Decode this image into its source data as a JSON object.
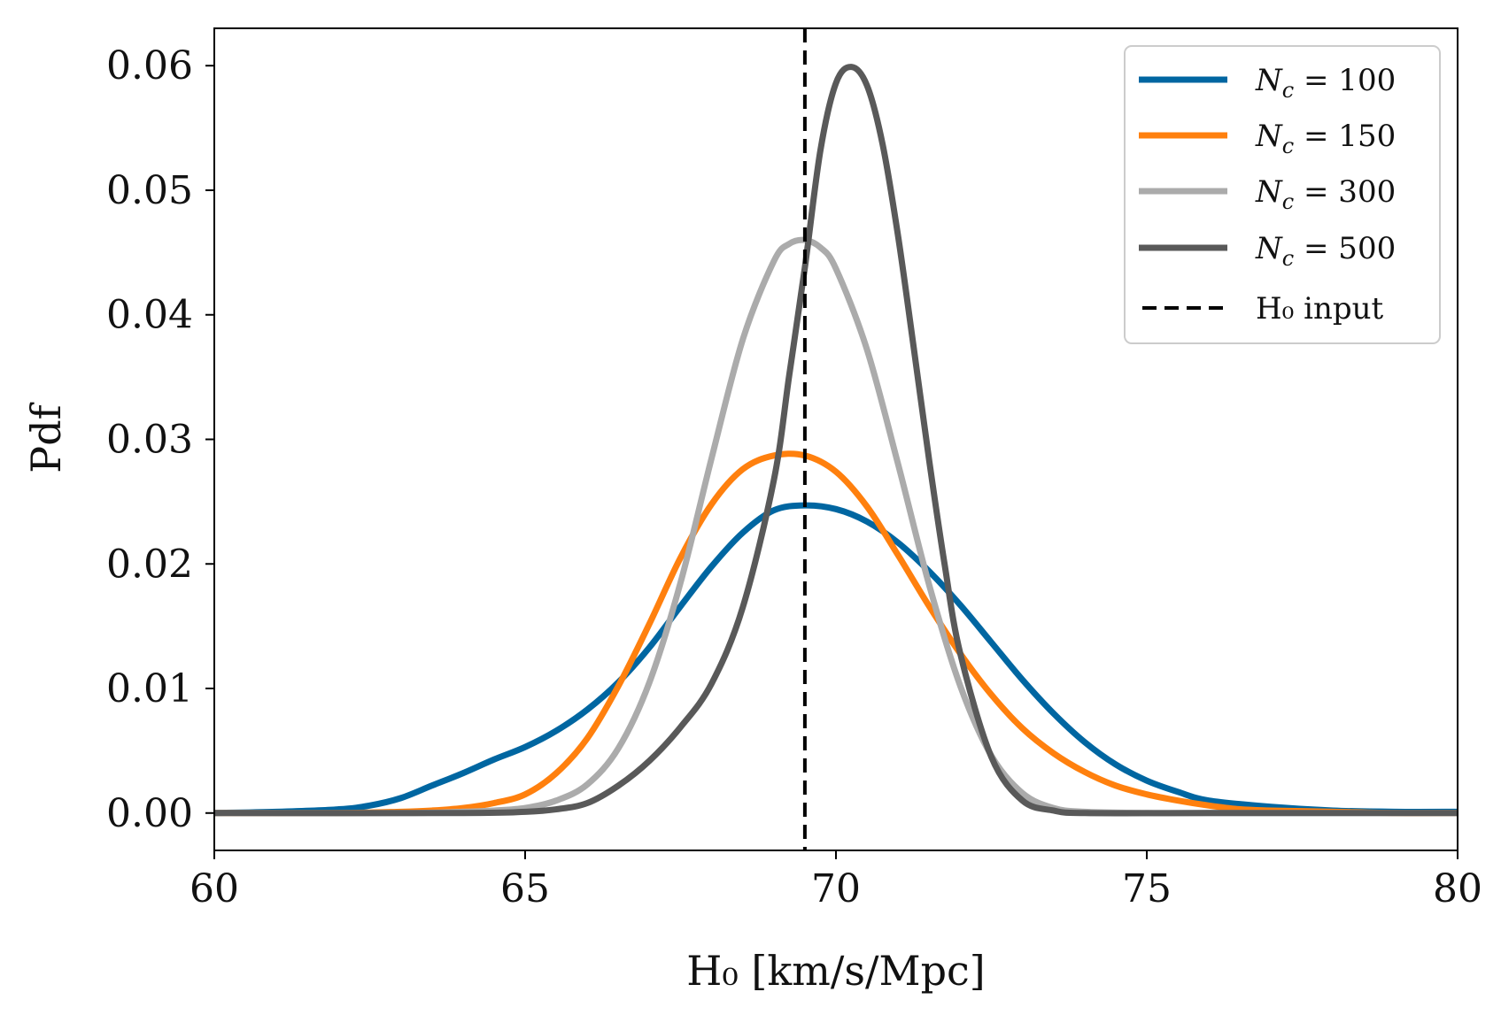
{
  "chart_data": {
    "type": "line",
    "title": "",
    "xlabel": "H₀ [km/s/Mpc]",
    "ylabel": "Pdf",
    "xlim": [
      60,
      80
    ],
    "ylim": [
      -0.003,
      0.063
    ],
    "xticks": [
      60,
      65,
      70,
      75,
      80
    ],
    "xtick_labels": [
      "60",
      "65",
      "70",
      "75",
      "80"
    ],
    "yticks": [
      0.0,
      0.01,
      0.02,
      0.03,
      0.04,
      0.05,
      0.06
    ],
    "ytick_labels": [
      "0.00",
      "0.01",
      "0.02",
      "0.03",
      "0.04",
      "0.05",
      "0.06"
    ],
    "grid": false,
    "legend_position": "top-right",
    "vline": {
      "x": 69.5,
      "label": "H₀ input",
      "color": "#000000",
      "style": "dashed"
    },
    "series": [
      {
        "name": "N_c = 100",
        "legend_var": "N",
        "legend_sub": "c",
        "legend_rest": " = 100",
        "color": "#0066a1",
        "x": [
          60,
          61,
          62,
          62.5,
          63,
          63.5,
          64,
          64.5,
          65,
          65.5,
          66,
          66.5,
          67,
          67.5,
          68,
          68.5,
          69,
          69.5,
          70,
          70.5,
          71,
          71.5,
          72,
          72.5,
          73,
          73.5,
          74,
          74.5,
          75,
          75.5,
          76,
          77,
          78,
          79,
          80
        ],
        "values": [
          0.0,
          0.0001,
          0.0003,
          0.0006,
          0.0012,
          0.0022,
          0.0032,
          0.0043,
          0.0053,
          0.0066,
          0.0083,
          0.0105,
          0.0133,
          0.0166,
          0.0198,
          0.0225,
          0.0243,
          0.0247,
          0.0244,
          0.0234,
          0.0217,
          0.0194,
          0.0167,
          0.0137,
          0.0107,
          0.008,
          0.0057,
          0.0039,
          0.0026,
          0.0017,
          0.001,
          0.0005,
          0.0002,
          0.0001,
          0.0001
        ]
      },
      {
        "name": "N_c = 150",
        "legend_var": "N",
        "legend_sub": "c",
        "legend_rest": " = 150",
        "color": "#ff800e",
        "x": [
          60,
          62,
          63,
          63.5,
          64,
          64.5,
          65,
          65.5,
          66,
          66.5,
          67,
          67.5,
          68,
          68.5,
          69,
          69.5,
          70,
          70.5,
          71,
          71.5,
          72,
          72.5,
          73,
          73.5,
          74,
          74.5,
          75,
          75.5,
          76,
          76.5,
          77,
          78,
          79,
          80
        ],
        "values": [
          0.0,
          0.0,
          0.0001,
          0.0002,
          0.0004,
          0.0008,
          0.0015,
          0.0032,
          0.006,
          0.0102,
          0.0152,
          0.0205,
          0.0248,
          0.0276,
          0.0287,
          0.0287,
          0.0274,
          0.0246,
          0.0207,
          0.0166,
          0.0128,
          0.0095,
          0.0068,
          0.0048,
          0.0033,
          0.0022,
          0.0015,
          0.001,
          0.0006,
          0.0003,
          0.0002,
          0.0001,
          0.0,
          0.0
        ]
      },
      {
        "name": "N_c = 300",
        "legend_var": "N",
        "legend_sub": "c",
        "legend_rest": " = 300",
        "color": "#ababab",
        "x": [
          60,
          63,
          64,
          64.5,
          65,
          65.5,
          66,
          66.5,
          67,
          67.5,
          68,
          68.5,
          69,
          69.25,
          69.5,
          69.75,
          70,
          70.5,
          71,
          71.5,
          72,
          72.5,
          73,
          73.5,
          74,
          75,
          76,
          80
        ],
        "values": [
          0.0,
          0.0,
          0.0001,
          0.0002,
          0.0004,
          0.001,
          0.0023,
          0.0052,
          0.0105,
          0.0185,
          0.0285,
          0.038,
          0.0443,
          0.0457,
          0.046,
          0.0454,
          0.0437,
          0.0372,
          0.028,
          0.0183,
          0.0102,
          0.0046,
          0.0016,
          0.0004,
          0.0001,
          0.0,
          0.0,
          0.0
        ]
      },
      {
        "name": "N_c = 500",
        "legend_var": "N",
        "legend_sub": "c",
        "legend_rest": " = 500",
        "color": "#595959",
        "x": [
          60,
          64,
          65,
          65.5,
          66,
          66.5,
          67,
          67.5,
          68,
          68.5,
          69,
          69.25,
          69.5,
          69.75,
          70,
          70.25,
          70.5,
          70.75,
          71,
          71.25,
          71.5,
          71.75,
          72,
          72.5,
          73,
          73.5,
          74,
          76,
          80
        ],
        "values": [
          0.0,
          0.0,
          0.0001,
          0.0003,
          0.0008,
          0.0022,
          0.0042,
          0.0069,
          0.0104,
          0.0165,
          0.0267,
          0.0352,
          0.0438,
          0.0532,
          0.0586,
          0.0599,
          0.0584,
          0.0537,
          0.0463,
          0.0374,
          0.0283,
          0.0199,
          0.0128,
          0.0045,
          0.001,
          0.0002,
          0.0,
          0.0,
          0.0
        ]
      }
    ]
  }
}
